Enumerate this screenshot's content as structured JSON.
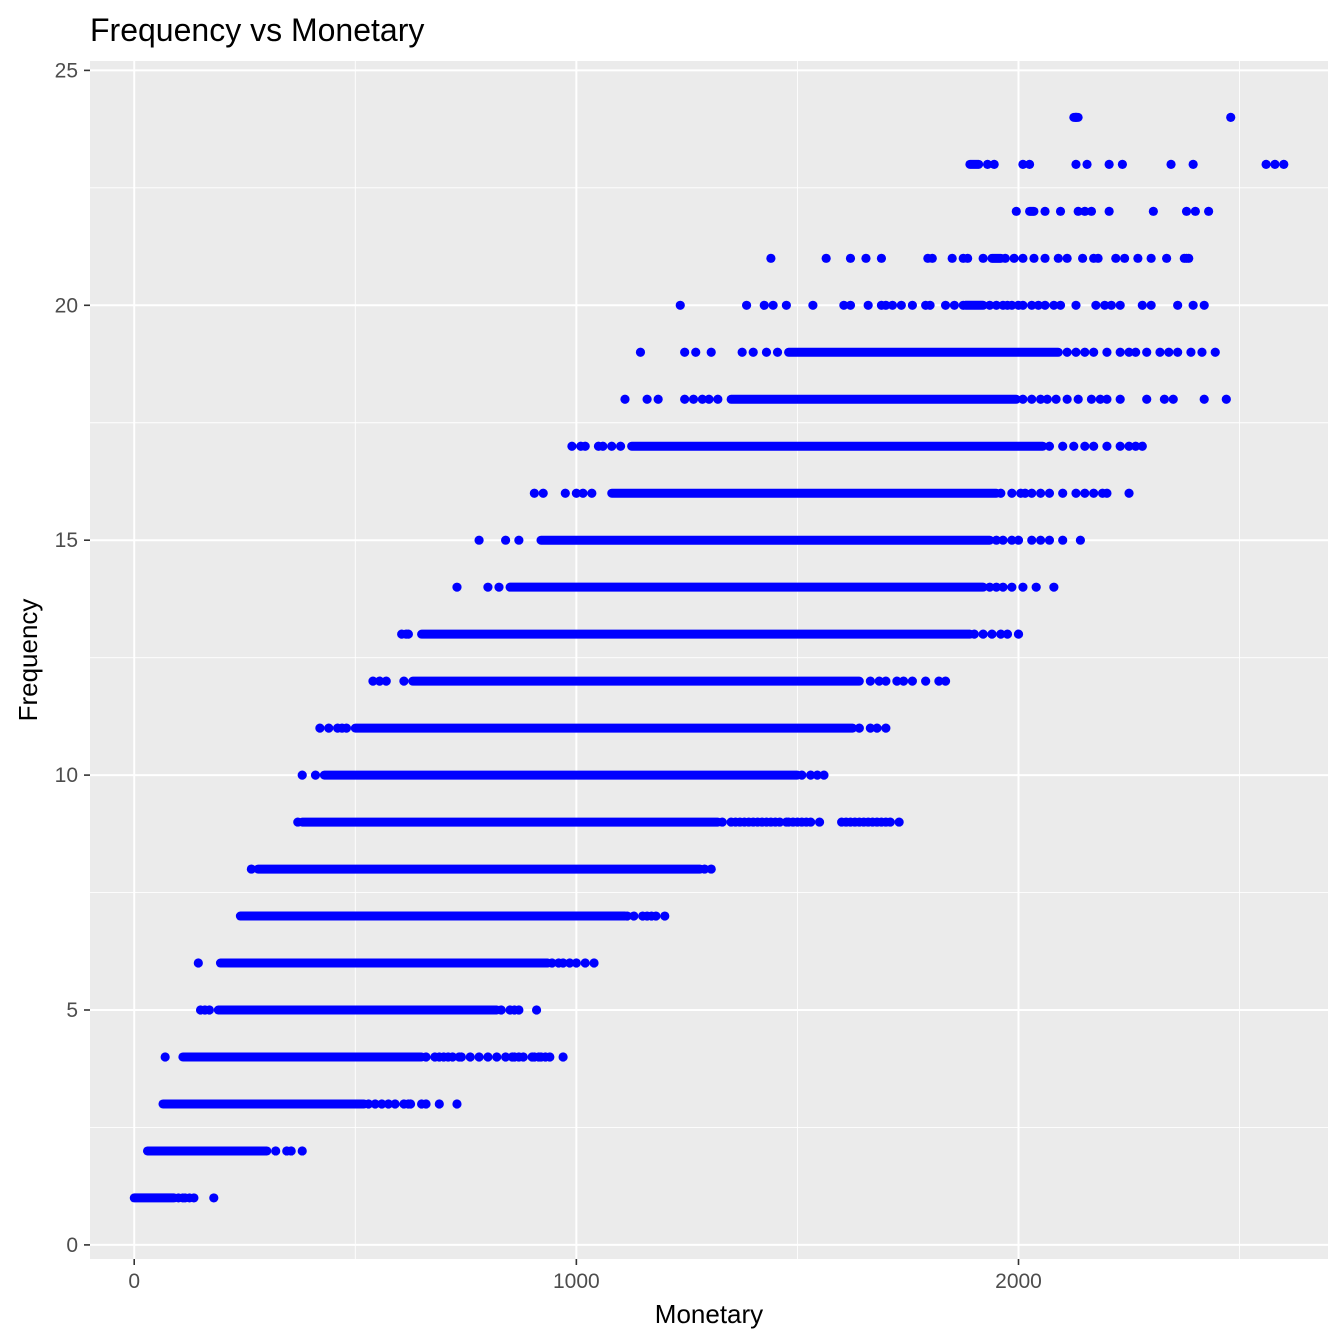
{
  "chart_data": {
    "type": "scatter",
    "title": "Frequency vs Monetary",
    "xlabel": "Monetary",
    "ylabel": "Frequency",
    "xlim": [
      -100,
      2700
    ],
    "ylim": [
      -0.3,
      25.2
    ],
    "x_ticks": [
      0,
      1000,
      2000
    ],
    "x_tick_labels": [
      "0",
      "1000",
      "2000"
    ],
    "y_ticks": [
      0,
      5,
      10,
      15,
      20,
      25
    ],
    "y_tick_labels": [
      "0",
      "5",
      "10",
      "15",
      "20",
      "25"
    ],
    "grid": true,
    "legend": "none",
    "point_color": "#0000ff",
    "panel_color": "#ebebeb",
    "grid_color": "#ffffff",
    "series": [
      {
        "rows": [
          {
            "y": 1,
            "band": [
              0,
              90
            ],
            "x": [
              100,
              110,
              115,
              125,
              135,
              180
            ]
          },
          {
            "y": 2,
            "band": [
              30,
              300
            ],
            "x": [
              320,
              345,
              355,
              380
            ]
          },
          {
            "y": 3,
            "band": [
              65,
              520
            ],
            "x": [
              530,
              545,
              560,
              575,
              590,
              610,
              620,
              625,
              650,
              660,
              690,
              730
            ]
          },
          {
            "y": 4,
            "band": [
              110,
              650
            ],
            "x": [
              70,
              660,
              680,
              690,
              700,
              710,
              720,
              735,
              740,
              760,
              780,
              800,
              820,
              840,
              855,
              860,
              870,
              880,
              900,
              905,
              915,
              920,
              930,
              940,
              970
            ]
          },
          {
            "y": 5,
            "band": [
              190,
              820
            ],
            "x": [
              150,
              160,
              170,
              830,
              850,
              860,
              870,
              910
            ]
          },
          {
            "y": 6,
            "band": [
              195,
              935
            ],
            "x": [
              145,
              945,
              960,
              970,
              985,
              1000,
              1020,
              1040
            ]
          },
          {
            "y": 7,
            "band": [
              240,
              1110
            ],
            "x": [
              1115,
              1130,
              1150,
              1160,
              1170,
              1180,
              1200
            ]
          },
          {
            "y": 8,
            "band": [
              280,
              1280
            ],
            "x": [
              265,
              1290,
              1305
            ]
          },
          {
            "y": 9,
            "band": [
              380,
              1320
            ],
            "x": [
              370,
              1330,
              1350,
              1360,
              1370,
              1380,
              1390,
              1400,
              1410,
              1420,
              1430,
              1440,
              1450,
              1460,
              1475,
              1480,
              1490,
              1500,
              1510,
              1520,
              1530,
              1550,
              1600,
              1610,
              1620,
              1630,
              1640,
              1650,
              1660,
              1670,
              1680,
              1690,
              1700,
              1710,
              1730
            ]
          },
          {
            "y": 10,
            "band": [
              430,
              1500
            ],
            "x": [
              380,
              410,
              1510,
              1530,
              1545,
              1560
            ]
          },
          {
            "y": 11,
            "band": [
              500,
              1625
            ],
            "x": [
              420,
              440,
              460,
              470,
              480,
              1640,
              1665,
              1680,
              1700
            ]
          },
          {
            "y": 12,
            "band": [
              630,
              1640
            ],
            "x": [
              540,
              555,
              570,
              610,
              1665,
              1685,
              1700,
              1725,
              1740,
              1760,
              1790,
              1820,
              1835
            ]
          },
          {
            "y": 13,
            "band": [
              650,
              1890
            ],
            "x": [
              605,
              615,
              620,
              1900,
              1920,
              1940,
              1960,
              1975,
              2000
            ]
          },
          {
            "y": 14,
            "band": [
              850,
              1920
            ],
            "x": [
              730,
              800,
              825,
              1935,
              1950,
              1965,
              1985,
              2010,
              2040,
              2080
            ]
          },
          {
            "y": 15,
            "band": [
              920,
              1935
            ],
            "x": [
              780,
              840,
              870,
              1950,
              1965,
              1985,
              2000,
              2030,
              2050,
              2070,
              2100,
              2140
            ]
          },
          {
            "y": 16,
            "band": [
              1080,
              1950
            ],
            "x": [
              905,
              925,
              975,
              1000,
              1015,
              1035,
              1960,
              1985,
              2005,
              2015,
              2030,
              2050,
              2070,
              2100,
              2130,
              2150,
              2170,
              2190,
              2200,
              2250
            ]
          },
          {
            "y": 17,
            "band": [
              1125,
              2055
            ],
            "x": [
              990,
              1010,
              1020,
              1050,
              1060,
              1080,
              1100,
              2070,
              2100,
              2125,
              2150,
              2170,
              2200,
              2230,
              2250,
              2265,
              2280
            ]
          },
          {
            "y": 18,
            "band": [
              1350,
              1995
            ],
            "x": [
              1110,
              1160,
              1185,
              1245,
              1265,
              1285,
              1300,
              1320,
              2010,
              2030,
              2050,
              2065,
              2085,
              2110,
              2135,
              2165,
              2185,
              2200,
              2230,
              2290,
              2330,
              2350,
              2420,
              2470
            ]
          },
          {
            "y": 19,
            "band": [
              1480,
              2090
            ],
            "x": [
              1145,
              1245,
              1270,
              1305,
              1375,
              1400,
              1430,
              1455,
              2110,
              2130,
              2150,
              2170,
              2200,
              2230,
              2250,
              2265,
              2290,
              2320,
              2340,
              2360,
              2390,
              2415,
              2445
            ]
          },
          {
            "y": 20,
            "band": [
              1880,
              1920
            ],
            "x": [
              1235,
              1385,
              1425,
              1445,
              1475,
              1535,
              1605,
              1620,
              1660,
              1690,
              1700,
              1715,
              1735,
              1760,
              1790,
              1800,
              1835,
              1855,
              1875,
              1935,
              1950,
              1965,
              1975,
              1985,
              2000,
              2010,
              2030,
              2045,
              2060,
              2080,
              2095,
              2130,
              2175,
              2195,
              2210,
              2230,
              2280,
              2300,
              2360,
              2395,
              2420
            ]
          },
          {
            "y": 21,
            "band": [
              1940,
              1960
            ],
            "x": [
              1440,
              1565,
              1620,
              1655,
              1690,
              1795,
              1805,
              1850,
              1875,
              1885,
              1920,
              1970,
              1990,
              2010,
              2035,
              2060,
              2090,
              2110,
              2145,
              2170,
              2180,
              2220,
              2240,
              2270,
              2300,
              2335,
              2375,
              2380,
              2385
            ]
          },
          {
            "y": 22,
            "band": [
              2025,
              2035
            ],
            "x": [
              1995,
              2060,
              2095,
              2135,
              2150,
              2165,
              2205,
              2305,
              2380,
              2400,
              2430
            ]
          },
          {
            "y": 23,
            "band": [
              1890,
              1910
            ],
            "x": [
              1930,
              1945,
              2010,
              2025,
              2130,
              2155,
              2205,
              2235,
              2345,
              2395,
              2560,
              2580,
              2600
            ]
          },
          {
            "y": 24,
            "band": [
              2125,
              2135
            ],
            "x": [
              2130,
              2480
            ]
          }
        ]
      }
    ]
  }
}
